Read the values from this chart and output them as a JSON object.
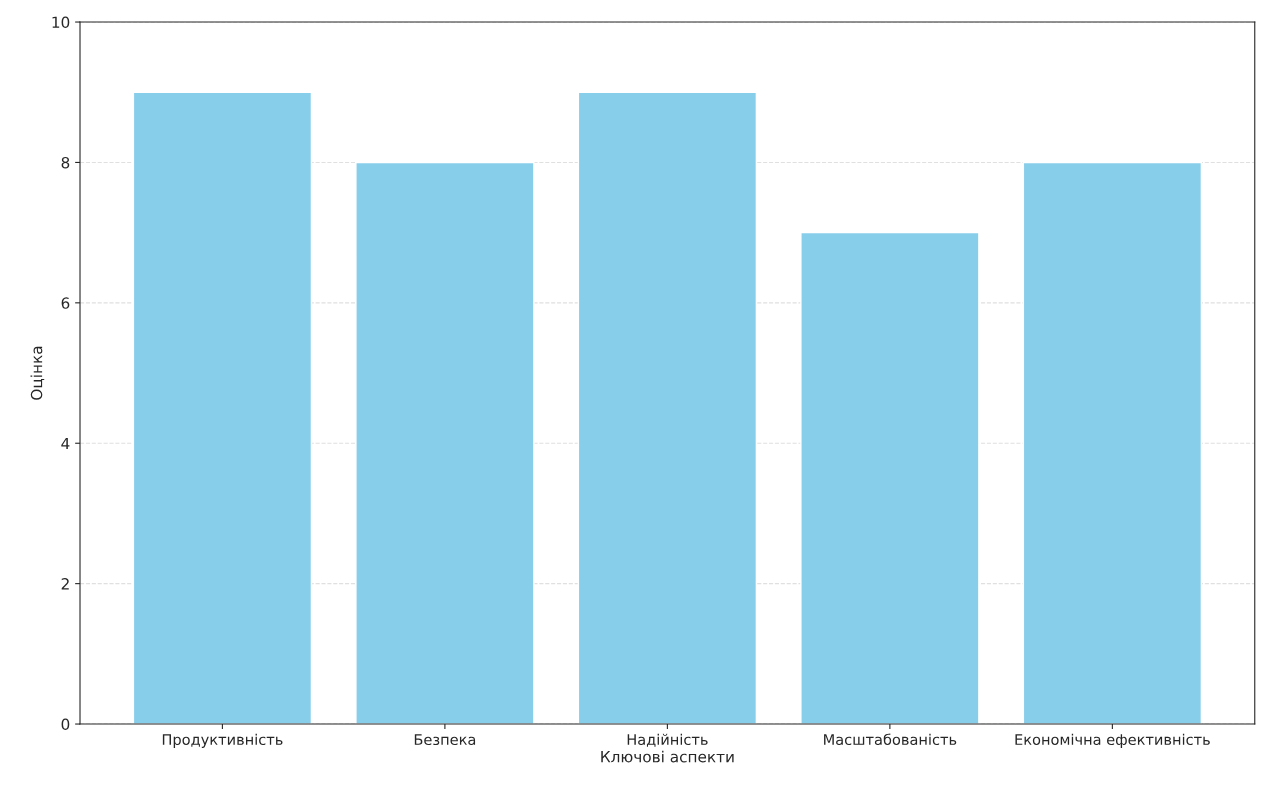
{
  "chart_data": {
    "type": "bar",
    "xlabel": "Ключові аспекти",
    "ylabel": "Оцінка",
    "categories": [
      "Продуктивність",
      "Безпека",
      "Надійність",
      "Масштабованість",
      "Економічна ефективність"
    ],
    "values": [
      9,
      8,
      9,
      7,
      8
    ],
    "color": "#87ceeb",
    "ylim": [
      0,
      10
    ],
    "yticks": [
      0,
      2,
      4,
      6,
      8,
      10
    ],
    "grid": "y",
    "line_style": "dashed",
    "legend": false
  }
}
